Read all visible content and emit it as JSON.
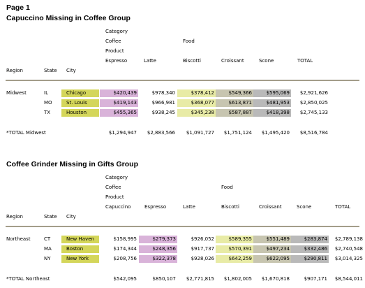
{
  "report": {
    "page": "Page 1",
    "sections": [
      {
        "title": "Capuccino Missing in Coffee Group",
        "category": "Category",
        "groups": [
          "Coffee",
          "Food"
        ],
        "product": "Product",
        "row_headers": [
          "Region",
          "State",
          "City"
        ],
        "columns": [
          "Espresso",
          "Latte",
          "Biscotti",
          "Croissant",
          "Scone",
          "TOTAL"
        ],
        "rows": [
          {
            "region": "Midwest",
            "state": "IL",
            "city": "Chicago",
            "values": [
              "$420,439",
              "$978,340",
              "$378,412",
              "$549,366",
              "$595,069",
              "$2,921,626"
            ]
          },
          {
            "state": "MO",
            "city": "St. Louis",
            "values": [
              "$419,143",
              "$966,981",
              "$368,077",
              "$613,871",
              "$481,953",
              "$2,850,025"
            ]
          },
          {
            "state": "TX",
            "city": "Houston",
            "values": [
              "$455,365",
              "$938,245",
              "$345,238",
              "$587,887",
              "$418,398",
              "$2,745,133"
            ]
          }
        ],
        "total": {
          "label": "*TOTAL Midwest",
          "values": [
            "$1,294,947",
            "$2,883,566",
            "$1,091,727",
            "$1,751,124",
            "$1,495,420",
            "$8,516,784"
          ]
        }
      },
      {
        "title": "Coffee Grinder Missing in Gifts Group",
        "category": "Category",
        "groups": [
          "Coffee",
          "Food"
        ],
        "product": "Product",
        "row_headers": [
          "Region",
          "State",
          "City"
        ],
        "columns": [
          "Capuccino",
          "Espresso",
          "Latte",
          "Biscotti",
          "Croissant",
          "Scone",
          "TOTAL"
        ],
        "rows": [
          {
            "region": "Northeast",
            "state": "CT",
            "city": "New Haven",
            "values": [
              "$158,995",
              "$279,373",
              "$926,052",
              "$589,355",
              "$551,489",
              "$283,874",
              "$2,789,138"
            ]
          },
          {
            "state": "MA",
            "city": "Boston",
            "values": [
              "$174,344",
              "$248,356",
              "$917,737",
              "$570,391",
              "$497,234",
              "$332,486",
              "$2,740,548"
            ]
          },
          {
            "state": "NY",
            "city": "New York",
            "values": [
              "$208,756",
              "$322,378",
              "$928,026",
              "$642,259",
              "$622,095",
              "$290,811",
              "$3,014,325"
            ]
          }
        ],
        "total": {
          "label": "*TOTAL Northeast",
          "values": [
            "$542,095",
            "$850,107",
            "$2,771,815",
            "$1,802,005",
            "$1,670,818",
            "$907,171",
            "$8,544,011"
          ]
        }
      }
    ]
  }
}
